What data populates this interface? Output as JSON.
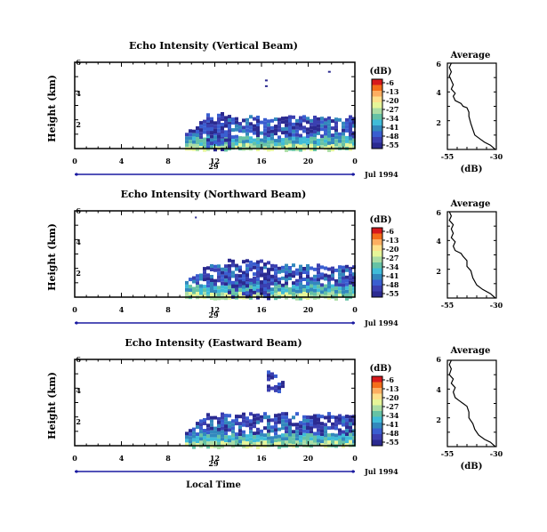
{
  "chart_data": [
    {
      "type": "heatmap",
      "title": "Echo Intensity (Vertical Beam)",
      "ylabel": "Height (km)",
      "xticks": [
        "0",
        "4",
        "8",
        "12",
        "16",
        "20",
        "0"
      ],
      "yticks": [
        "6",
        "4",
        "2"
      ],
      "date_labels": {
        "day": "29",
        "month_year": "Jul 1994"
      },
      "xlim": [
        0,
        24
      ],
      "ylim": [
        0,
        6
      ],
      "echo_regions": [
        {
          "x0": 9.2,
          "x1": 24,
          "y_top": 2.2,
          "note": "main echo layer"
        },
        {
          "x0": 11.2,
          "x1": 13.2,
          "y_top": 2.5
        }
      ]
    },
    {
      "type": "heatmap",
      "title": "Echo Intensity (Northward Beam)",
      "ylabel": "Height (km)",
      "xticks": [
        "0",
        "4",
        "8",
        "12",
        "16",
        "20",
        "0"
      ],
      "yticks": [
        "6",
        "4",
        "2"
      ],
      "date_labels": {
        "day": "29",
        "month_year": "Jul 1994"
      },
      "xlim": [
        0,
        24
      ],
      "ylim": [
        0,
        6
      ],
      "echo_regions": [
        {
          "x0": 9.2,
          "x1": 24,
          "y_top": 2.2
        },
        {
          "x0": 13,
          "x1": 17,
          "y_top": 2.6
        }
      ]
    },
    {
      "type": "heatmap",
      "title": "Echo Intensity (Eastward Beam)",
      "ylabel": "Height (km)",
      "xlabel": "Local Time",
      "xticks": [
        "0",
        "4",
        "8",
        "12",
        "16",
        "20",
        "0"
      ],
      "yticks": [
        "6",
        "4",
        "2"
      ],
      "date_labels": {
        "day": "29",
        "month_year": "Jul 1994"
      },
      "xlim": [
        0,
        24
      ],
      "ylim": [
        0,
        6
      ],
      "echo_regions": [
        {
          "x0": 9.2,
          "x1": 24,
          "y_top": 2.2
        },
        {
          "x0": 16.3,
          "x1": 17.8,
          "y_top": 5.2,
          "y_bottom": 3.8
        }
      ]
    }
  ],
  "colorbar": {
    "unit": "(dB)",
    "labels": [
      "-6",
      "-13",
      "-20",
      "-27",
      "-34",
      "-41",
      "-48",
      "-55"
    ],
    "colors": [
      "#d7191c",
      "#f46d1a",
      "#fdae61",
      "#fee08b",
      "#e6f598",
      "#abdda4",
      "#66c2a5",
      "#3fbcd8",
      "#3288bd",
      "#3a5ed0",
      "#3b3fb0",
      "#2b2a90"
    ]
  },
  "average_profiles": [
    {
      "title": "Average",
      "xlabel": "(dB)",
      "xticks": [
        "-55",
        "-30"
      ],
      "yticks": [
        "6",
        "4",
        "2"
      ],
      "xlim": [
        -55,
        -30
      ],
      "ylim": [
        0,
        6
      ],
      "profile": [
        [
          -30.5,
          0.0
        ],
        [
          -33,
          0.3
        ],
        [
          -36,
          0.5
        ],
        [
          -38,
          0.7
        ],
        [
          -41,
          1.0
        ],
        [
          -42,
          1.4
        ],
        [
          -43,
          1.8
        ],
        [
          -44,
          2.3
        ],
        [
          -44,
          2.6
        ],
        [
          -45,
          2.9
        ],
        [
          -47,
          3.0
        ],
        [
          -48,
          3.2
        ],
        [
          -51,
          3.4
        ],
        [
          -52,
          3.7
        ],
        [
          -51,
          3.9
        ],
        [
          -53,
          4.2
        ],
        [
          -52,
          4.5
        ],
        [
          -53,
          4.8
        ],
        [
          -54,
          5.1
        ],
        [
          -53,
          5.4
        ],
        [
          -54,
          5.7
        ],
        [
          -53,
          6.0
        ]
      ]
    },
    {
      "title": "Average",
      "xlabel": "(dB)",
      "xticks": [
        "-55",
        "-30"
      ],
      "yticks": [
        "6",
        "4",
        "2"
      ],
      "xlim": [
        -55,
        -30
      ],
      "ylim": [
        0,
        6
      ],
      "profile": [
        [
          -30.5,
          0.0
        ],
        [
          -33,
          0.3
        ],
        [
          -37,
          0.6
        ],
        [
          -40,
          0.9
        ],
        [
          -42,
          1.4
        ],
        [
          -43,
          1.9
        ],
        [
          -45,
          2.2
        ],
        [
          -45,
          2.6
        ],
        [
          -47,
          2.9
        ],
        [
          -48,
          3.1
        ],
        [
          -51,
          3.3
        ],
        [
          -52,
          3.6
        ],
        [
          -51,
          3.9
        ],
        [
          -53,
          4.2
        ],
        [
          -52,
          4.5
        ],
        [
          -53,
          4.8
        ],
        [
          -52,
          5.1
        ],
        [
          -54,
          5.4
        ],
        [
          -53,
          5.7
        ],
        [
          -54,
          6.0
        ]
      ]
    },
    {
      "title": "Average",
      "xlabel": "(dB)",
      "xticks": [
        "-55",
        "-30"
      ],
      "yticks": [
        "6",
        "4",
        "2"
      ],
      "xlim": [
        -55,
        -30
      ],
      "ylim": [
        0,
        6
      ],
      "profile": [
        [
          -30.5,
          0.0
        ],
        [
          -33,
          0.3
        ],
        [
          -36,
          0.5
        ],
        [
          -39,
          0.8
        ],
        [
          -41,
          1.2
        ],
        [
          -42,
          1.6
        ],
        [
          -44,
          2.0
        ],
        [
          -44,
          2.4
        ],
        [
          -45,
          2.8
        ],
        [
          -47,
          3.0
        ],
        [
          -49,
          3.2
        ],
        [
          -51,
          3.4
        ],
        [
          -52,
          3.8
        ],
        [
          -51,
          4.1
        ],
        [
          -53,
          4.4
        ],
        [
          -52,
          4.7
        ],
        [
          -54,
          5.0
        ],
        [
          -53,
          5.4
        ],
        [
          -54,
          5.7
        ],
        [
          -53,
          6.0
        ]
      ]
    }
  ]
}
